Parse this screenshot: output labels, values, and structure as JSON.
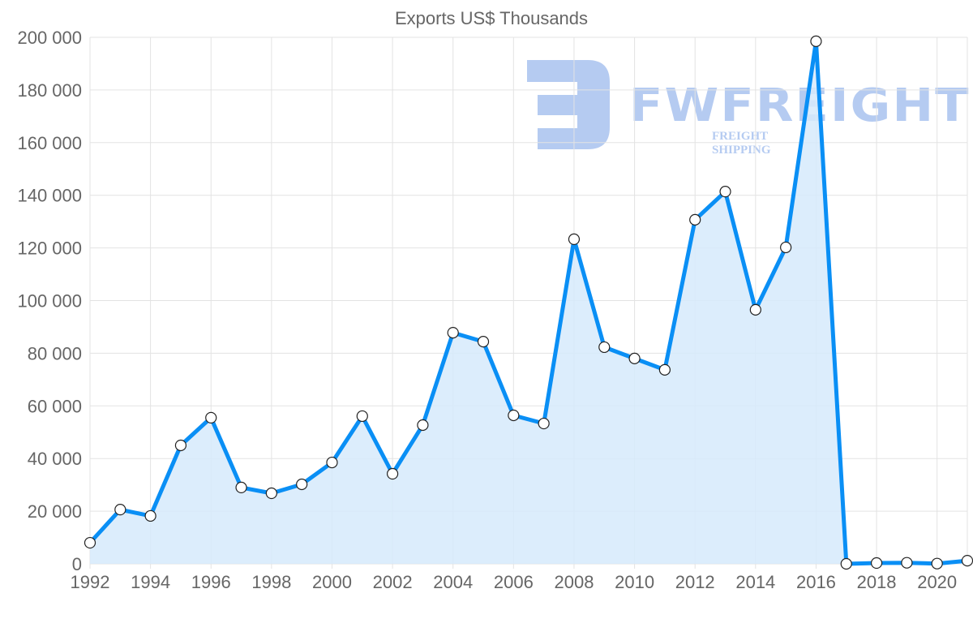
{
  "watermark": {
    "brand": "FWFREIGHT",
    "tagline": "FREIGHT SHIPPING"
  },
  "chart_data": {
    "type": "line",
    "title": "Exports US$ Thousands",
    "xlabel": "",
    "ylabel": "",
    "x": [
      1992,
      1993,
      1994,
      1995,
      1996,
      1997,
      1998,
      1999,
      2000,
      2001,
      2002,
      2003,
      2004,
      2005,
      2006,
      2007,
      2008,
      2009,
      2010,
      2011,
      2012,
      2013,
      2014,
      2015,
      2016,
      2017,
      2018,
      2019,
      2020,
      2021
    ],
    "series": [
      {
        "name": "Exports US$ Thousands",
        "values": [
          8000,
          20600,
          18200,
          45000,
          55500,
          29000,
          26800,
          30200,
          38500,
          56100,
          34200,
          52700,
          87800,
          84400,
          56400,
          53300,
          123300,
          82300,
          78000,
          73700,
          130700,
          141400,
          96500,
          120200,
          198500,
          0,
          300,
          400,
          100,
          1200
        ],
        "color": "#0a8ff5",
        "fill": "#d6eafc"
      }
    ],
    "xlim": [
      1992,
      2021
    ],
    "ylim": [
      0,
      200000
    ],
    "xticks": [
      "1992",
      "1994",
      "1996",
      "1998",
      "2000",
      "2002",
      "2004",
      "2006",
      "2008",
      "2010",
      "2012",
      "2014",
      "2016",
      "2018",
      "2020"
    ],
    "yticks": [
      "0",
      "20 000",
      "40 000",
      "60 000",
      "80 000",
      "100 000",
      "120 000",
      "140 000",
      "160 000",
      "180 000",
      "200 000"
    ],
    "grid": true,
    "legend": "none"
  }
}
